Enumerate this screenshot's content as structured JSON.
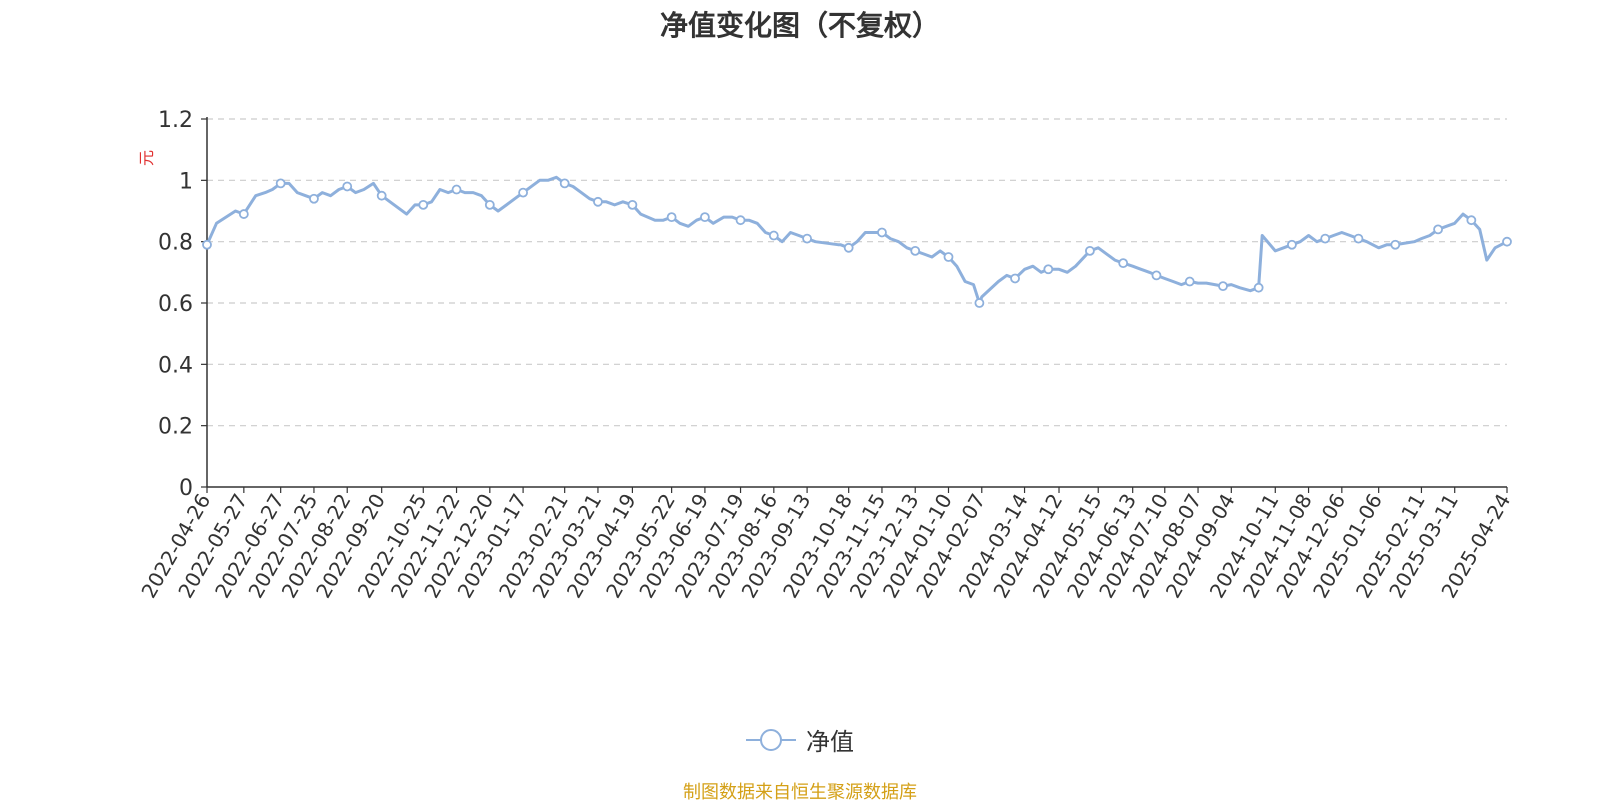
{
  "chart_data": {
    "type": "line",
    "title": "净值变化图（不复权）",
    "ylabel": "元",
    "ylim": [
      0,
      1.2
    ],
    "yticks": [
      "0",
      "0.2",
      "0.4",
      "0.6",
      "0.8",
      "1",
      "1.2"
    ],
    "yticks_values": [
      0,
      0.2,
      0.4,
      0.6,
      0.8,
      1.0,
      1.2
    ],
    "xlabels": [
      "2022-04-26",
      "2022-05-27",
      "2022-06-27",
      "2022-07-25",
      "2022-08-22",
      "2022-09-20",
      "2022-10-25",
      "2022-11-22",
      "2022-12-20",
      "2023-01-17",
      "2023-02-21",
      "2023-03-21",
      "2023-04-19",
      "2023-05-22",
      "2023-06-19",
      "2023-07-19",
      "2023-08-16",
      "2023-09-13",
      "2023-10-18",
      "2023-11-15",
      "2023-12-13",
      "2024-01-10",
      "2024-02-07",
      "2024-03-14",
      "2024-04-12",
      "2024-05-15",
      "2024-06-13",
      "2024-07-10",
      "2024-08-07",
      "2024-09-04",
      "2024-10-11",
      "2024-11-08",
      "2024-12-06",
      "2025-01-06",
      "2025-02-11",
      "2025-03-11",
      "2025-04-24"
    ],
    "grid": true,
    "legend_position": "bottom",
    "series": [
      {
        "name": "净值",
        "color": "#8eb0dc",
        "x": [
          "2022-04-26",
          "2022-05-04",
          "2022-05-12",
          "2022-05-20",
          "2022-05-27",
          "2022-06-06",
          "2022-06-14",
          "2022-06-20",
          "2022-06-27",
          "2022-07-04",
          "2022-07-11",
          "2022-07-18",
          "2022-07-25",
          "2022-08-01",
          "2022-08-08",
          "2022-08-15",
          "2022-08-22",
          "2022-08-29",
          "2022-09-05",
          "2022-09-13",
          "2022-09-20",
          "2022-09-27",
          "2022-10-11",
          "2022-10-18",
          "2022-10-25",
          "2022-11-01",
          "2022-11-08",
          "2022-11-15",
          "2022-11-22",
          "2022-11-29",
          "2022-12-06",
          "2022-12-13",
          "2022-12-20",
          "2022-12-27",
          "2023-01-03",
          "2023-01-10",
          "2023-01-17",
          "2023-01-31",
          "2023-02-07",
          "2023-02-14",
          "2023-02-21",
          "2023-02-28",
          "2023-03-07",
          "2023-03-14",
          "2023-03-21",
          "2023-03-28",
          "2023-04-04",
          "2023-04-11",
          "2023-04-19",
          "2023-04-26",
          "2023-05-08",
          "2023-05-15",
          "2023-05-22",
          "2023-05-29",
          "2023-06-05",
          "2023-06-12",
          "2023-06-19",
          "2023-06-26",
          "2023-07-05",
          "2023-07-12",
          "2023-07-19",
          "2023-07-26",
          "2023-08-02",
          "2023-08-09",
          "2023-08-16",
          "2023-08-23",
          "2023-08-30",
          "2023-09-06",
          "2023-09-13",
          "2023-09-20",
          "2023-10-09",
          "2023-10-11",
          "2023-10-18",
          "2023-10-25",
          "2023-11-01",
          "2023-11-08",
          "2023-11-15",
          "2023-11-22",
          "2023-11-29",
          "2023-12-06",
          "2023-12-13",
          "2023-12-20",
          "2023-12-27",
          "2024-01-03",
          "2024-01-10",
          "2024-01-17",
          "2024-01-24",
          "2024-01-31",
          "2024-02-05",
          "2024-02-07",
          "2024-02-21",
          "2024-02-28",
          "2024-03-06",
          "2024-03-14",
          "2024-03-21",
          "2024-03-28",
          "2024-04-03",
          "2024-04-12",
          "2024-04-19",
          "2024-04-26",
          "2024-05-08",
          "2024-05-15",
          "2024-05-22",
          "2024-05-29",
          "2024-06-05",
          "2024-06-13",
          "2024-06-20",
          "2024-06-27",
          "2024-07-03",
          "2024-07-10",
          "2024-07-17",
          "2024-07-24",
          "2024-07-31",
          "2024-08-07",
          "2024-08-14",
          "2024-08-21",
          "2024-08-28",
          "2024-09-04",
          "2024-09-11",
          "2024-09-20",
          "2024-09-27",
          "2024-09-30",
          "2024-10-11",
          "2024-10-18",
          "2024-10-25",
          "2024-11-01",
          "2024-11-08",
          "2024-11-15",
          "2024-11-22",
          "2024-11-29",
          "2024-12-06",
          "2024-12-13",
          "2024-12-20",
          "2024-12-27",
          "2025-01-06",
          "2025-01-13",
          "2025-01-20",
          "2025-02-05",
          "2025-02-11",
          "2025-02-18",
          "2025-02-25",
          "2025-03-04",
          "2025-03-11",
          "2025-03-18",
          "2025-03-25",
          "2025-04-01",
          "2025-04-07",
          "2025-04-14",
          "2025-04-24"
        ],
        "y": [
          0.79,
          0.86,
          0.88,
          0.9,
          0.89,
          0.95,
          0.96,
          0.97,
          0.99,
          0.99,
          0.96,
          0.95,
          0.94,
          0.96,
          0.95,
          0.97,
          0.98,
          0.96,
          0.97,
          0.99,
          0.95,
          0.93,
          0.89,
          0.92,
          0.92,
          0.93,
          0.97,
          0.96,
          0.97,
          0.96,
          0.96,
          0.95,
          0.92,
          0.9,
          0.92,
          0.94,
          0.96,
          1.0,
          1.0,
          1.01,
          0.99,
          0.98,
          0.96,
          0.94,
          0.93,
          0.93,
          0.92,
          0.93,
          0.92,
          0.89,
          0.87,
          0.87,
          0.88,
          0.86,
          0.85,
          0.87,
          0.88,
          0.86,
          0.88,
          0.88,
          0.87,
          0.87,
          0.86,
          0.83,
          0.82,
          0.8,
          0.83,
          0.82,
          0.81,
          0.8,
          0.79,
          0.79,
          0.78,
          0.8,
          0.83,
          0.83,
          0.83,
          0.81,
          0.8,
          0.78,
          0.77,
          0.76,
          0.75,
          0.77,
          0.75,
          0.72,
          0.67,
          0.66,
          0.6,
          0.62,
          0.67,
          0.69,
          0.68,
          0.71,
          0.72,
          0.7,
          0.71,
          0.71,
          0.7,
          0.72,
          0.77,
          0.78,
          0.76,
          0.74,
          0.73,
          0.72,
          0.71,
          0.7,
          0.69,
          0.68,
          0.67,
          0.66,
          0.67,
          0.665,
          0.665,
          0.66,
          0.655,
          0.66,
          0.65,
          0.64,
          0.65,
          0.82,
          0.77,
          0.78,
          0.79,
          0.8,
          0.82,
          0.8,
          0.81,
          0.82,
          0.83,
          0.82,
          0.81,
          0.8,
          0.78,
          0.79,
          0.79,
          0.8,
          0.81,
          0.82,
          0.84,
          0.85,
          0.86,
          0.89,
          0.87,
          0.84,
          0.74,
          0.78,
          0.8
        ]
      }
    ]
  },
  "legend": {
    "label": "净值"
  },
  "footer": {
    "source": "制图数据来自恒生聚源数据库",
    "color": "#d4a017"
  }
}
